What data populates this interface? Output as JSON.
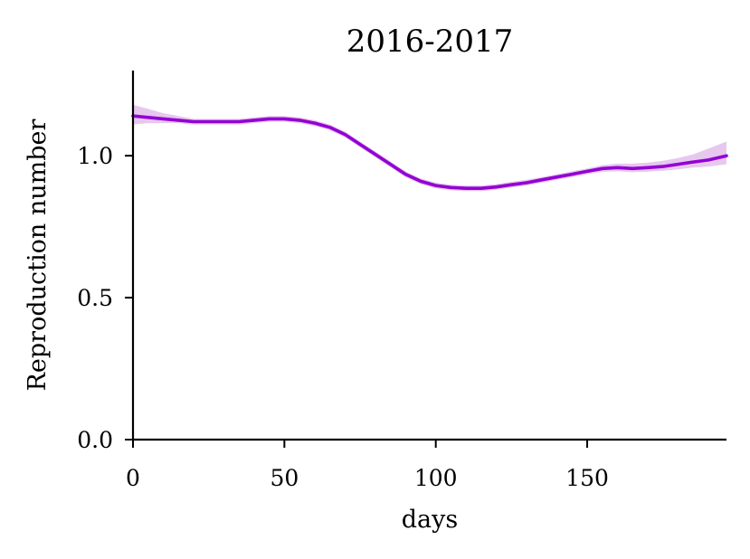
{
  "chart_data": {
    "type": "line",
    "title": "2016-2017",
    "xlabel": "days",
    "ylabel": "Reproduction number",
    "xlim": [
      0,
      196
    ],
    "ylim": [
      0,
      1.3
    ],
    "xticks": [
      0,
      50,
      100,
      150
    ],
    "xtick_labels": [
      "0",
      "50",
      "100",
      "150"
    ],
    "yticks": [
      0,
      0.5,
      1.0
    ],
    "ytick_labels": [
      "0.0",
      "0.5",
      "1.0"
    ],
    "grid": false,
    "legend": "none",
    "series": [
      {
        "color": "#9400d3",
        "band_color": "#e6c8ee",
        "x": [
          0,
          5,
          10,
          15,
          20,
          25,
          30,
          35,
          40,
          45,
          50,
          55,
          60,
          65,
          70,
          75,
          80,
          85,
          90,
          95,
          100,
          105,
          110,
          115,
          120,
          125,
          130,
          135,
          140,
          145,
          150,
          155,
          160,
          165,
          170,
          175,
          180,
          185,
          190,
          196
        ],
        "y": [
          1.14,
          1.135,
          1.13,
          1.125,
          1.12,
          1.12,
          1.12,
          1.12,
          1.125,
          1.13,
          1.13,
          1.125,
          1.115,
          1.1,
          1.075,
          1.04,
          1.005,
          0.97,
          0.935,
          0.91,
          0.895,
          0.888,
          0.885,
          0.885,
          0.89,
          0.898,
          0.905,
          0.915,
          0.925,
          0.935,
          0.945,
          0.955,
          0.958,
          0.955,
          0.958,
          0.962,
          0.97,
          0.978,
          0.985,
          1.0
        ],
        "lower": [
          1.11,
          1.115,
          1.115,
          1.115,
          1.11,
          1.11,
          1.11,
          1.11,
          1.115,
          1.12,
          1.12,
          1.115,
          1.105,
          1.09,
          1.065,
          1.03,
          0.995,
          0.96,
          0.925,
          0.9,
          0.885,
          0.878,
          0.875,
          0.875,
          0.88,
          0.888,
          0.895,
          0.905,
          0.915,
          0.925,
          0.935,
          0.943,
          0.945,
          0.942,
          0.944,
          0.947,
          0.952,
          0.958,
          0.962,
          0.97
        ],
        "upper": [
          1.18,
          1.165,
          1.15,
          1.14,
          1.13,
          1.13,
          1.13,
          1.13,
          1.135,
          1.14,
          1.14,
          1.135,
          1.125,
          1.11,
          1.085,
          1.05,
          1.015,
          0.98,
          0.945,
          0.92,
          0.905,
          0.898,
          0.895,
          0.895,
          0.9,
          0.908,
          0.915,
          0.925,
          0.935,
          0.945,
          0.955,
          0.967,
          0.972,
          0.972,
          0.976,
          0.982,
          0.992,
          1.005,
          1.025,
          1.05
        ]
      }
    ]
  }
}
